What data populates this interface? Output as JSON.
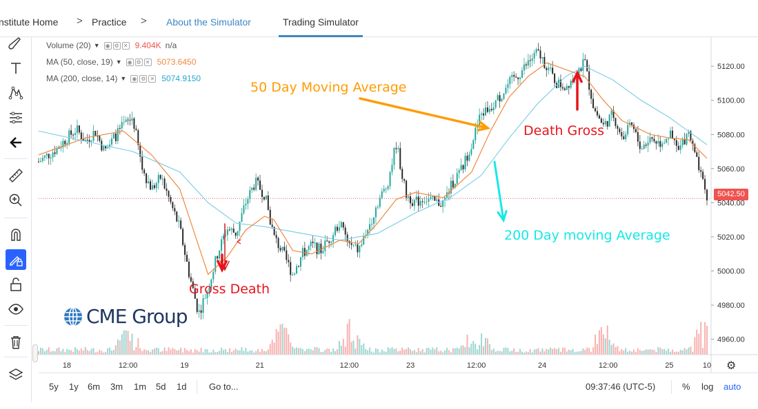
{
  "breadcrumb": {
    "items": [
      "nstitute Home",
      "Practice",
      "About the Simulator"
    ],
    "active_tab": "Trading Simulator",
    "separator": ">"
  },
  "legend": [
    {
      "name": "Volume (20)",
      "value": "9.404K",
      "value2": "n/a",
      "color": "#ef5350"
    },
    {
      "name": "MA (50, close, 19)",
      "value": "5073.6450",
      "color": "#f0883e"
    },
    {
      "name": "MA (200, close, 14)",
      "value": "5074.9150",
      "color": "#26a7c9"
    }
  ],
  "annotations": {
    "ma50": "50 Day Moving Average",
    "death_cross": "Death Gross",
    "gross_death": "Gross Death",
    "ma200": "200 Day moving Average"
  },
  "logo_text": "CME Group",
  "current_price_label": "5042.50",
  "bottom_bar": {
    "ranges": [
      "5y",
      "1y",
      "6m",
      "3m",
      "1m",
      "5d",
      "1d"
    ],
    "goto": "Go to...",
    "time": "09:37:46 (UTC-5)",
    "percent": "%",
    "log": "log",
    "auto": "auto"
  },
  "colors": {
    "up": "#26a69a",
    "down": "#ef5350",
    "candle_body": "#2a2a2a",
    "ma50": "#f0883e",
    "ma200": "#7fd0e6",
    "arrow_orange": "#ff9c00",
    "arrow_cyan": "#16e8e8",
    "arrow_red": "#e8141c",
    "accent": "#2962ff"
  },
  "chart_data": {
    "type": "line",
    "series_kind": "candlestick-with-moving-averages",
    "y_ticks": [
      "5120.00",
      "5100.00",
      "5080.00",
      "5060.00",
      "5040.00",
      "5020.00",
      "5000.00",
      "4980.00",
      "4960.00"
    ],
    "y_tick_values": [
      5120,
      5100,
      5080,
      5060,
      5040,
      5020,
      5000,
      4980,
      4960
    ],
    "ylim": [
      4951,
      5137
    ],
    "x_ticks": [
      "18",
      "12:00",
      "19",
      "21",
      "12:00",
      "23",
      "12:00",
      "24",
      "12:00",
      "25",
      "10"
    ],
    "last_price": 5042.5,
    "price_path": [
      [
        0,
        5064
      ],
      [
        2,
        5072
      ],
      [
        3,
        5078
      ],
      [
        4,
        5083
      ],
      [
        5,
        5076
      ],
      [
        6,
        5082
      ],
      [
        7,
        5070
      ],
      [
        8,
        5078
      ],
      [
        9,
        5085
      ],
      [
        10,
        5090
      ],
      [
        11,
        5060
      ],
      [
        12,
        5048
      ],
      [
        13,
        5055
      ],
      [
        14,
        5040
      ],
      [
        15,
        5025
      ],
      [
        16,
        4998
      ],
      [
        17,
        4975
      ],
      [
        18,
        4990
      ],
      [
        19,
        5010
      ],
      [
        20,
        5025
      ],
      [
        21,
        5022
      ],
      [
        22,
        5040
      ],
      [
        23,
        5052
      ],
      [
        24,
        5045
      ],
      [
        25,
        5020
      ],
      [
        26,
        5010
      ],
      [
        27,
        4998
      ],
      [
        28,
        5010
      ],
      [
        29,
        5015
      ],
      [
        30,
        5012
      ],
      [
        31,
        5020
      ],
      [
        32,
        5028
      ],
      [
        33,
        5015
      ],
      [
        34,
        5012
      ],
      [
        35,
        5025
      ],
      [
        36,
        5040
      ],
      [
        37,
        5050
      ],
      [
        38,
        5075
      ],
      [
        39,
        5045
      ],
      [
        40,
        5040
      ],
      [
        41,
        5043
      ],
      [
        42,
        5040
      ],
      [
        43,
        5040
      ],
      [
        44,
        5052
      ],
      [
        45,
        5060
      ],
      [
        46,
        5075
      ],
      [
        47,
        5092
      ],
      [
        48,
        5096
      ],
      [
        49,
        5102
      ],
      [
        50,
        5110
      ],
      [
        51,
        5115
      ],
      [
        52,
        5122
      ],
      [
        53,
        5128
      ],
      [
        54,
        5120
      ],
      [
        55,
        5110
      ],
      [
        56,
        5108
      ],
      [
        57,
        5116
      ],
      [
        58,
        5122
      ],
      [
        59,
        5095
      ],
      [
        60,
        5085
      ],
      [
        61,
        5092
      ],
      [
        62,
        5078
      ],
      [
        63,
        5085
      ],
      [
        64,
        5072
      ],
      [
        65,
        5078
      ],
      [
        66,
        5075
      ],
      [
        67,
        5080
      ],
      [
        68,
        5070
      ],
      [
        69,
        5082
      ],
      [
        70,
        5062
      ],
      [
        71,
        5042
      ]
    ],
    "ma50": [
      [
        0,
        5068
      ],
      [
        5,
        5078
      ],
      [
        9,
        5082
      ],
      [
        12,
        5068
      ],
      [
        15,
        5048
      ],
      [
        18,
        4998
      ],
      [
        20,
        5008
      ],
      [
        22,
        5024
      ],
      [
        24,
        5032
      ],
      [
        25,
        5030
      ],
      [
        27,
        5012
      ],
      [
        29,
        5010
      ],
      [
        32,
        5018
      ],
      [
        34,
        5016
      ],
      [
        36,
        5028
      ],
      [
        38,
        5042
      ],
      [
        40,
        5046
      ],
      [
        43,
        5043
      ],
      [
        46,
        5058
      ],
      [
        48,
        5082
      ],
      [
        50,
        5102
      ],
      [
        52,
        5114
      ],
      [
        54,
        5122
      ],
      [
        56,
        5118
      ],
      [
        58,
        5114
      ],
      [
        60,
        5100
      ],
      [
        62,
        5088
      ],
      [
        65,
        5080
      ],
      [
        67,
        5078
      ],
      [
        69,
        5077
      ],
      [
        71,
        5066
      ]
    ],
    "ma200": [
      [
        0,
        5082
      ],
      [
        5,
        5076
      ],
      [
        10,
        5070
      ],
      [
        15,
        5058
      ],
      [
        18,
        5040
      ],
      [
        21,
        5028
      ],
      [
        24,
        5026
      ],
      [
        28,
        5022
      ],
      [
        32,
        5018
      ],
      [
        36,
        5022
      ],
      [
        40,
        5034
      ],
      [
        44,
        5044
      ],
      [
        47,
        5056
      ],
      [
        50,
        5078
      ],
      [
        53,
        5098
      ],
      [
        56,
        5114
      ],
      [
        58,
        5120
      ],
      [
        61,
        5112
      ],
      [
        64,
        5100
      ],
      [
        67,
        5090
      ],
      [
        69,
        5082
      ],
      [
        71,
        5074
      ]
    ]
  }
}
